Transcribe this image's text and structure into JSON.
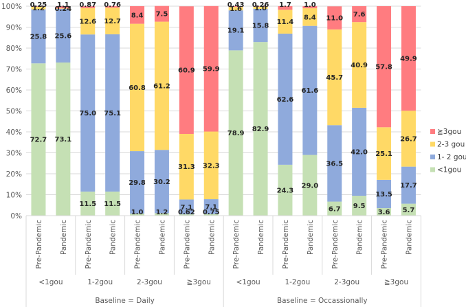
{
  "chart_data": {
    "type": "bar",
    "stacked": true,
    "normalized": true,
    "ylim": [
      0,
      100
    ],
    "ytick_labels": [
      "0%",
      "10%",
      "20%",
      "30%",
      "40%",
      "50%",
      "60%",
      "70%",
      "80%",
      "90%",
      "100%"
    ],
    "categories": [
      "Pre-Pandemic",
      "Pandemic",
      "Pre-Pandemic",
      "Pandemic",
      "Pre-Pandemic",
      "Pandemic",
      "Pre-Pandemic",
      "Pandemic",
      "Pre-Pandemic",
      "Pandemic",
      "Pre-Pandemic",
      "Pandemic",
      "Pre-Pandemic",
      "Pandemic",
      "Pre-Pandemic",
      "Pandemic"
    ],
    "subgroups": [
      "<1gou",
      "1-2gou",
      "2-3gou",
      "≧3gou",
      "<1gou",
      "1-2gou",
      "2-3gou",
      "≧3gou"
    ],
    "groups": [
      "Baseline = Daily",
      "Baseline = Occassionally"
    ],
    "series": [
      {
        "name": "<1gou",
        "color": "#c5e0b4",
        "values": [
          72.7,
          73.1,
          11.5,
          11.5,
          1.0,
          1.2,
          0.62,
          0.75,
          78.9,
          82.9,
          24.3,
          29.0,
          6.7,
          9.5,
          3.6,
          5.7
        ],
        "labels": [
          "72.7",
          "73.1",
          "11.5",
          "11.5",
          "1.0",
          "1.2",
          "0.62",
          "0.75",
          "78.9",
          "82.9",
          "24.3",
          "29.0",
          "6.7",
          "9.5",
          "3.6",
          "5.7"
        ]
      },
      {
        "name": "1- 2 gou",
        "color": "#8faadc",
        "values": [
          25.8,
          25.6,
          75.0,
          75.1,
          29.8,
          30.2,
          7.1,
          7.1,
          19.1,
          15.8,
          62.6,
          61.6,
          36.5,
          42.0,
          13.5,
          17.7
        ],
        "labels": [
          "25.8",
          "25.6",
          "75.0",
          "75.1",
          "29.8",
          "30.2",
          "7.1",
          "7.1",
          "19.1",
          "15.8",
          "62.6",
          "61.6",
          "36.5",
          "42.0",
          "13.5",
          "17.7"
        ]
      },
      {
        "name": "2-3 gou",
        "color": "#ffd966",
        "values": [
          1.2,
          0.24,
          12.6,
          12.7,
          60.8,
          61.2,
          31.3,
          32.3,
          1.6,
          1.0,
          11.4,
          8.4,
          45.7,
          40.9,
          25.1,
          26.7
        ],
        "labels": [
          "1.2",
          "0.24",
          "12.6",
          "12.7",
          "60.8",
          "61.2",
          "31.3",
          "32.3",
          "1.6",
          "1.0",
          "11.4",
          "8.4",
          "45.7",
          "40.9",
          "25.1",
          "26.7"
        ]
      },
      {
        "name": "≧3gou",
        "color": "#ff7c80",
        "values": [
          0.25,
          1.1,
          0.87,
          0.76,
          8.4,
          7.5,
          60.9,
          59.9,
          0.43,
          0.26,
          1.7,
          1.0,
          11.0,
          7.6,
          57.8,
          49.9
        ],
        "labels": [
          "0.25",
          "1.1",
          "0.87",
          "0.76",
          "8.4",
          "7.5",
          "60.9",
          "59.9",
          "0.43",
          "0.26",
          "1.7",
          "1.0",
          "11.0",
          "7.6",
          "57.8",
          "49.9"
        ]
      }
    ],
    "legend": {
      "position": "right",
      "order": [
        "≧3gou",
        "2-3 gou",
        "1- 2 gou",
        "<1gou"
      ]
    }
  }
}
